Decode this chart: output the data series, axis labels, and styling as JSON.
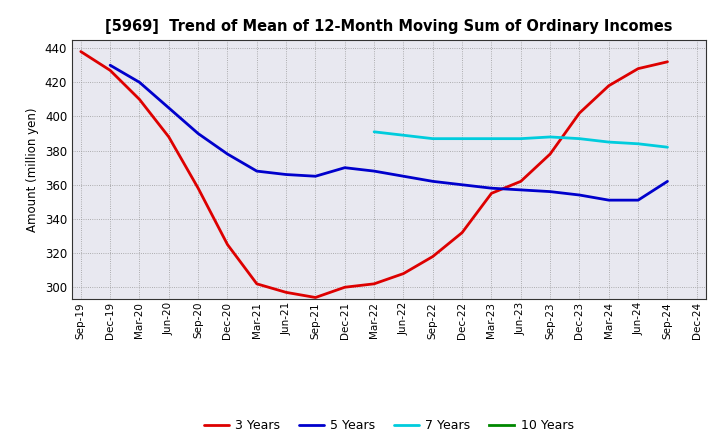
{
  "title": "[5969]  Trend of Mean of 12-Month Moving Sum of Ordinary Incomes",
  "ylabel": "Amount (million yen)",
  "ylim": [
    293,
    445
  ],
  "yticks": [
    300,
    320,
    340,
    360,
    380,
    400,
    420,
    440
  ],
  "background_color": "#ffffff",
  "plot_bg_color": "#e8e8f0",
  "grid_color": "#999999",
  "x_labels": [
    "Sep-19",
    "Dec-19",
    "Mar-20",
    "Jun-20",
    "Sep-20",
    "Dec-20",
    "Mar-21",
    "Jun-21",
    "Sep-21",
    "Dec-21",
    "Mar-22",
    "Jun-22",
    "Sep-22",
    "Dec-22",
    "Mar-23",
    "Jun-23",
    "Sep-23",
    "Dec-23",
    "Mar-24",
    "Jun-24",
    "Sep-24",
    "Dec-24"
  ],
  "series_order": [
    "3 Years",
    "5 Years",
    "7 Years",
    "10 Years"
  ],
  "series": {
    "3 Years": {
      "color": "#dd0000",
      "linewidth": 2.0,
      "values": [
        438,
        427,
        410,
        388,
        358,
        325,
        302,
        297,
        294,
        300,
        302,
        308,
        318,
        332,
        355,
        362,
        378,
        402,
        418,
        428,
        432,
        null
      ]
    },
    "5 Years": {
      "color": "#0000cc",
      "linewidth": 2.0,
      "values": [
        null,
        430,
        420,
        405,
        390,
        378,
        368,
        366,
        365,
        370,
        368,
        365,
        362,
        360,
        358,
        357,
        356,
        354,
        351,
        351,
        362,
        null
      ]
    },
    "7 Years": {
      "color": "#00ccdd",
      "linewidth": 2.0,
      "values": [
        null,
        null,
        null,
        null,
        null,
        null,
        null,
        null,
        null,
        null,
        391,
        389,
        387,
        387,
        387,
        387,
        388,
        387,
        385,
        384,
        382,
        null
      ]
    },
    "10 Years": {
      "color": "#008800",
      "linewidth": 2.0,
      "values": [
        null,
        null,
        null,
        null,
        null,
        null,
        null,
        null,
        null,
        null,
        null,
        null,
        null,
        null,
        null,
        null,
        null,
        null,
        null,
        null,
        null,
        null
      ]
    }
  }
}
